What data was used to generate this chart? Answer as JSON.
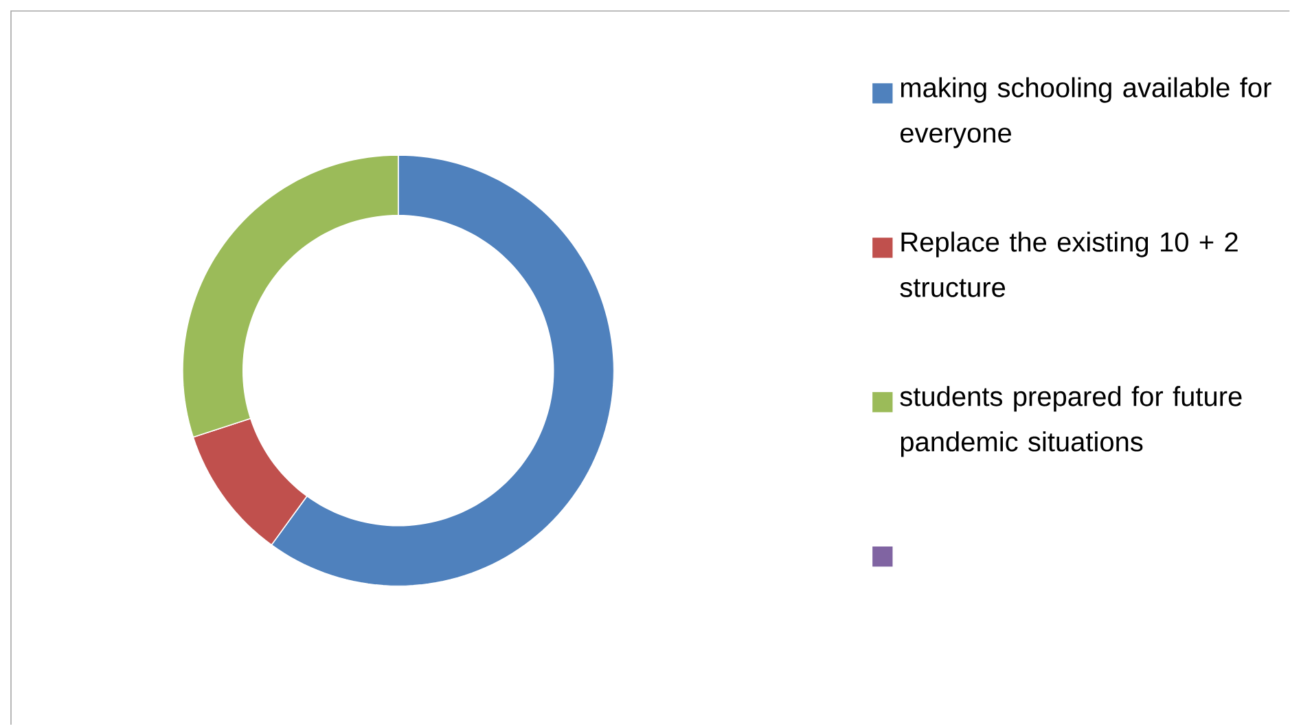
{
  "chart_data": {
    "type": "donut",
    "categories": [
      "making schooling available for everyone",
      "Replace the existing 10 + 2 structure",
      "students prepared for future pandemic situations",
      null
    ],
    "values": [
      60,
      10,
      30,
      0
    ],
    "colors": [
      "#4f81bd",
      "#c0504d",
      "#9bbb59",
      "#8064a2"
    ],
    "legend": "right"
  }
}
